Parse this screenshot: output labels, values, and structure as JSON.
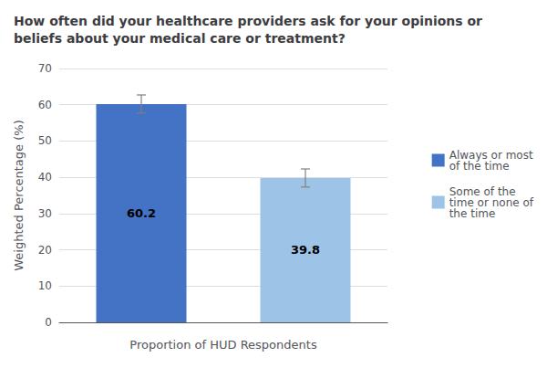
{
  "chart_data": {
    "type": "bar",
    "title": "How often did your healthcare providers ask for your opinions or\nbeliefs about your medical care or treatment?",
    "categories": [
      null,
      null
    ],
    "series": [
      {
        "name": "Always or most\nof the time",
        "color": "#4472C4",
        "values": [
          60.2,
          null
        ],
        "errors": [
          2.5,
          null
        ]
      },
      {
        "name": "Some of the\ntime or none of\nthe time",
        "color": "#9DC3E6",
        "values": [
          null,
          39.8
        ],
        "errors": [
          null,
          2.5
        ]
      }
    ],
    "xlabel": "Proportion of HUD Respondents",
    "ylabel": "Weighted Percentage (%)",
    "ylim": [
      0,
      70
    ],
    "yticks": [
      0,
      10,
      20,
      30,
      40,
      50,
      60,
      70
    ],
    "grid": true,
    "legend": "right",
    "data_labels": true
  }
}
